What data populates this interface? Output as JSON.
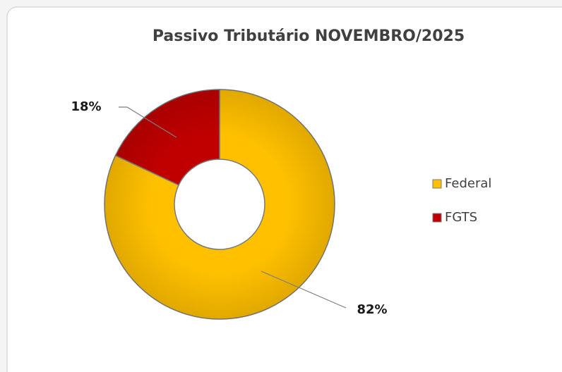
{
  "chart_data": {
    "type": "pie",
    "donut": true,
    "title": "Passivo Tributário NOVEMBRO/2025",
    "categories": [
      "Federal",
      "FGTS"
    ],
    "values": [
      82,
      18
    ],
    "value_labels": [
      "82%",
      "18%"
    ],
    "colors": [
      "#FFC000",
      "#C00000"
    ],
    "legend": "right"
  }
}
